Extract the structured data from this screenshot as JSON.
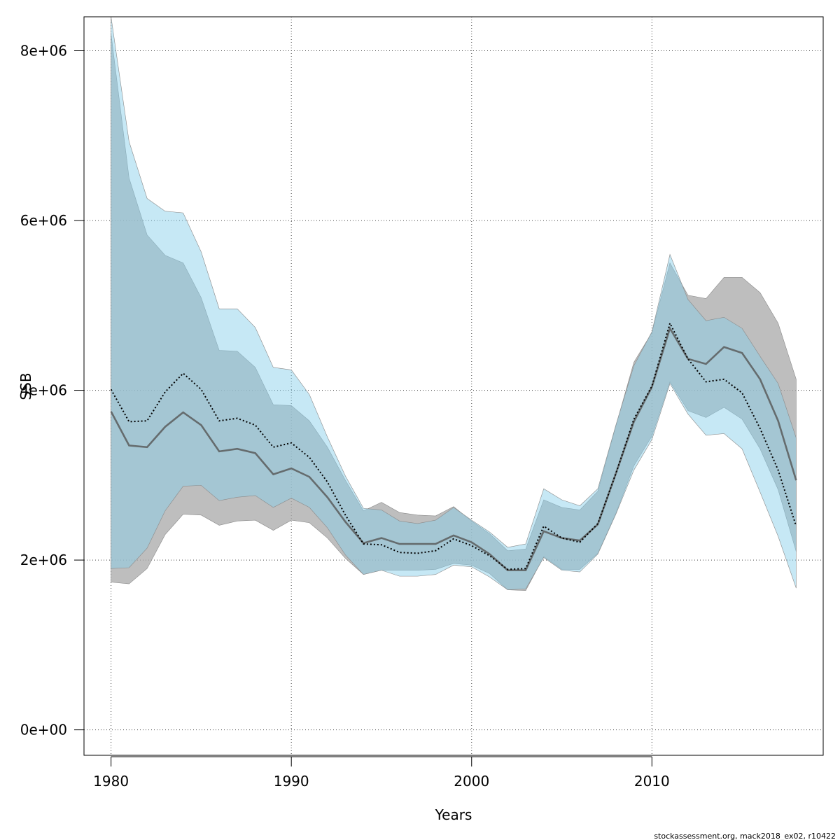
{
  "chart_data": {
    "type": "area",
    "xlabel": "Years",
    "ylabel": "SSB",
    "xlim": [
      1978.5,
      2019.5
    ],
    "ylim": [
      -300000,
      8400000
    ],
    "x_ticks": [
      1980,
      1990,
      2000,
      2010
    ],
    "x_tick_labels": [
      "1980",
      "1990",
      "2000",
      "2010"
    ],
    "y_ticks": [
      0,
      2000000,
      4000000,
      6000000,
      8000000
    ],
    "y_tick_labels": [
      "0e+00",
      "2e+06",
      "4e+06",
      "6e+06",
      "8e+06"
    ],
    "grid": true,
    "x": [
      1980,
      1981,
      1982,
      1983,
      1984,
      1985,
      1986,
      1987,
      1988,
      1989,
      1990,
      1991,
      1992,
      1993,
      1994,
      1995,
      1996,
      1997,
      1998,
      1999,
      2000,
      2001,
      2002,
      2003,
      2004,
      2005,
      2006,
      2007,
      2008,
      2009,
      2010,
      2011,
      2012,
      2013,
      2014,
      2015,
      2016,
      2017,
      2018
    ],
    "series": [
      {
        "line_style": "solid",
        "fill_color": "#a8a8a8",
        "line_color": "#555555",
        "estimate": [
          3750000,
          3350000,
          3330000,
          3570000,
          3740000,
          3590000,
          3280000,
          3310000,
          3260000,
          3010000,
          3080000,
          2980000,
          2740000,
          2450000,
          2200000,
          2260000,
          2190000,
          2190000,
          2190000,
          2290000,
          2210000,
          2070000,
          1880000,
          1880000,
          2340000,
          2260000,
          2230000,
          2420000,
          3020000,
          3630000,
          4040000,
          4730000,
          4370000,
          4310000,
          4510000,
          4440000,
          4130000,
          3640000,
          2940000
        ],
        "lower": [
          1740000,
          1720000,
          1900000,
          2300000,
          2540000,
          2530000,
          2410000,
          2460000,
          2470000,
          2350000,
          2470000,
          2440000,
          2260000,
          2020000,
          1830000,
          1880000,
          1880000,
          1880000,
          1890000,
          1960000,
          1940000,
          1840000,
          1650000,
          1640000,
          2040000,
          1890000,
          1890000,
          2080000,
          2550000,
          3110000,
          3460000,
          4100000,
          3760000,
          3680000,
          3800000,
          3660000,
          3310000,
          2830000,
          2100000
        ],
        "upper": [
          8200000,
          6500000,
          5830000,
          5590000,
          5500000,
          5090000,
          4470000,
          4460000,
          4270000,
          3830000,
          3820000,
          3640000,
          3330000,
          2940000,
          2580000,
          2680000,
          2560000,
          2530000,
          2520000,
          2630000,
          2460000,
          2310000,
          2110000,
          2130000,
          2710000,
          2620000,
          2590000,
          2810000,
          3580000,
          4330000,
          4680000,
          5500000,
          5120000,
          5080000,
          5330000,
          5330000,
          5150000,
          4790000,
          4130000
        ]
      },
      {
        "line_style": "dotted",
        "fill_color": "#87ceeb",
        "line_color": "#000000",
        "estimate": [
          4010000,
          3630000,
          3640000,
          3980000,
          4200000,
          4010000,
          3640000,
          3670000,
          3590000,
          3330000,
          3380000,
          3210000,
          2920000,
          2530000,
          2190000,
          2180000,
          2090000,
          2080000,
          2110000,
          2250000,
          2170000,
          2050000,
          1890000,
          1900000,
          2400000,
          2260000,
          2210000,
          2430000,
          3020000,
          3660000,
          4050000,
          4790000,
          4370000,
          4100000,
          4130000,
          3970000,
          3550000,
          3060000,
          2400000
        ],
        "lower": [
          1900000,
          1910000,
          2140000,
          2580000,
          2870000,
          2880000,
          2700000,
          2740000,
          2760000,
          2620000,
          2730000,
          2620000,
          2380000,
          2060000,
          1830000,
          1880000,
          1810000,
          1810000,
          1830000,
          1940000,
          1920000,
          1800000,
          1650000,
          1660000,
          2030000,
          1880000,
          1860000,
          2070000,
          2540000,
          3060000,
          3420000,
          4080000,
          3720000,
          3470000,
          3490000,
          3310000,
          2800000,
          2280000,
          1670000
        ],
        "upper": [
          8400000,
          6930000,
          6260000,
          6110000,
          6090000,
          5630000,
          4960000,
          4960000,
          4740000,
          4270000,
          4240000,
          3950000,
          3450000,
          2990000,
          2610000,
          2590000,
          2460000,
          2430000,
          2470000,
          2620000,
          2470000,
          2330000,
          2150000,
          2190000,
          2840000,
          2710000,
          2640000,
          2840000,
          3590000,
          4290000,
          4690000,
          5600000,
          5070000,
          4820000,
          4860000,
          4730000,
          4400000,
          4080000,
          3440000
        ]
      }
    ]
  },
  "footer": "stockassessment.org, mack2018_ex02, r10422"
}
